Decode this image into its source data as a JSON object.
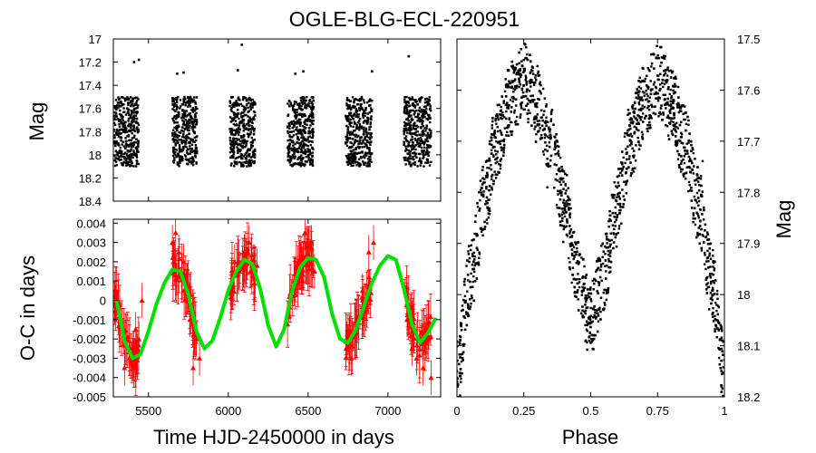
{
  "title": "OGLE-BLG-ECL-220951",
  "colors": {
    "points": "#000000",
    "oc_points": "#ff0000",
    "fit": "#00e000"
  },
  "chart_data": [
    {
      "id": "light_curve",
      "type": "scatter",
      "ylabel": "Mag",
      "ylim": [
        18.4,
        17.0
      ],
      "y_inverted": true,
      "xlim": [
        5280,
        7330
      ],
      "yticks": [
        17,
        17.2,
        17.4,
        17.6,
        17.8,
        18,
        18.2,
        18.4
      ],
      "ytick_labels": [
        "17",
        "17.2",
        "17.4",
        "17.6",
        "17.8",
        "18",
        "18.2",
        "18.4"
      ],
      "seasons": [
        {
          "start": 5285,
          "end": 5440,
          "mag_range": [
            17.5,
            18.1
          ]
        },
        {
          "start": 5650,
          "end": 5805,
          "mag_range": [
            17.5,
            18.1
          ]
        },
        {
          "start": 6010,
          "end": 6170,
          "mag_range": [
            17.5,
            18.1
          ]
        },
        {
          "start": 6370,
          "end": 6535,
          "mag_range": [
            17.5,
            18.1
          ]
        },
        {
          "start": 6735,
          "end": 6900,
          "mag_range": [
            17.5,
            18.1
          ]
        },
        {
          "start": 7100,
          "end": 7270,
          "mag_range": [
            17.5,
            18.1
          ]
        }
      ],
      "outliers": [
        {
          "x": 5410,
          "y": 17.2
        },
        {
          "x": 5440,
          "y": 17.18
        },
        {
          "x": 5680,
          "y": 17.3
        },
        {
          "x": 5720,
          "y": 17.29
        },
        {
          "x": 6060,
          "y": 17.27
        },
        {
          "x": 6085,
          "y": 17.05
        },
        {
          "x": 6420,
          "y": 17.3
        },
        {
          "x": 6470,
          "y": 17.28
        },
        {
          "x": 6900,
          "y": 17.28
        },
        {
          "x": 7130,
          "y": 17.15
        }
      ]
    },
    {
      "id": "oc_diagram",
      "type": "scatter",
      "xlabel": "Time HJD-2450000 in days",
      "ylabel": "O-C in days",
      "xlim": [
        5280,
        7330
      ],
      "ylim": [
        -0.005,
        0.0042
      ],
      "xticks": [
        5500,
        6000,
        6500,
        7000
      ],
      "xtick_labels": [
        "5500",
        "6000",
        "6500",
        "7000"
      ],
      "yticks": [
        0.004,
        0.003,
        0.002,
        0.001,
        0,
        -0.001,
        -0.002,
        -0.003,
        -0.004,
        -0.005
      ],
      "ytick_labels": [
        "0.004",
        "0.003",
        "0.002",
        "0.001",
        "0",
        "-0.001",
        "-0.002",
        "-0.003",
        "-0.004",
        "-0.005"
      ],
      "fit_curve": {
        "type": "line",
        "x": [
          5300,
          5350,
          5400,
          5450,
          5500,
          5550,
          5600,
          5650,
          5700,
          5750,
          5800,
          5850,
          5900,
          5950,
          6000,
          6050,
          6100,
          6150,
          6200,
          6250,
          6300,
          6350,
          6400,
          6450,
          6500,
          6550,
          6600,
          6650,
          6700,
          6750,
          6800,
          6850,
          6900,
          6950,
          7000,
          7050,
          7100,
          7150,
          7200,
          7250,
          7300
        ],
        "y": [
          0.0,
          -0.0021,
          -0.003,
          -0.0028,
          -0.0016,
          -0.0002,
          0.0009,
          0.0016,
          0.0015,
          0.0003,
          -0.0016,
          -0.0025,
          -0.0021,
          -0.0009,
          0.0005,
          0.0015,
          0.0021,
          0.0019,
          0.0006,
          -0.0013,
          -0.0024,
          -0.0015,
          0.0005,
          0.0017,
          0.0022,
          0.0021,
          0.0012,
          -0.0007,
          -0.002,
          -0.0022,
          -0.0015,
          -0.0003,
          0.0009,
          0.0018,
          0.0023,
          0.0021,
          0.0006,
          -0.0012,
          -0.0022,
          -0.0017,
          -0.0009
        ]
      },
      "observations": [
        {
          "x": 5380,
          "y": -0.003
        },
        {
          "x": 5400,
          "y": -0.0025
        },
        {
          "x": 5420,
          "y": -0.0015
        },
        {
          "x": 5440,
          "y": -0.002
        },
        {
          "x": 5460,
          "y": 0.0
        },
        {
          "x": 5350,
          "y": -0.0035
        },
        {
          "x": 5650,
          "y": 0.003
        },
        {
          "x": 5670,
          "y": 0.0035
        },
        {
          "x": 5690,
          "y": 0.0025
        },
        {
          "x": 5720,
          "y": 0.002
        },
        {
          "x": 5740,
          "y": 0.001
        },
        {
          "x": 5760,
          "y": -0.001
        },
        {
          "x": 5780,
          "y": -0.0035
        },
        {
          "x": 5800,
          "y": -0.002
        },
        {
          "x": 5820,
          "y": -0.003
        },
        {
          "x": 6040,
          "y": 0.002
        },
        {
          "x": 6070,
          "y": 0.0015
        },
        {
          "x": 6100,
          "y": 0.0025
        },
        {
          "x": 6130,
          "y": 0.003
        },
        {
          "x": 6160,
          "y": 0.002
        },
        {
          "x": 6180,
          "y": 0.0018
        },
        {
          "x": 6420,
          "y": 0.001
        },
        {
          "x": 6450,
          "y": 0.002
        },
        {
          "x": 6480,
          "y": 0.0035
        },
        {
          "x": 6500,
          "y": 0.0028
        },
        {
          "x": 6520,
          "y": 0.003
        },
        {
          "x": 6540,
          "y": 0.0015
        },
        {
          "x": 6740,
          "y": -0.002
        },
        {
          "x": 6770,
          "y": -0.003
        },
        {
          "x": 6800,
          "y": -0.0012
        },
        {
          "x": 6840,
          "y": 0.0005
        },
        {
          "x": 6880,
          "y": 0.0025
        },
        {
          "x": 6910,
          "y": 0.003
        },
        {
          "x": 7120,
          "y": -0.001
        },
        {
          "x": 7150,
          "y": -0.0025
        },
        {
          "x": 7180,
          "y": -0.003
        },
        {
          "x": 7220,
          "y": -0.0035
        },
        {
          "x": 7250,
          "y": -0.002
        },
        {
          "x": 7270,
          "y": -0.004
        }
      ]
    },
    {
      "id": "phased_light_curve",
      "type": "scatter",
      "xlabel": "Phase",
      "ylabel": "Mag",
      "xlim": [
        0,
        1
      ],
      "ylim": [
        18.2,
        17.5
      ],
      "y_inverted": true,
      "xticks": [
        0,
        0.25,
        0.5,
        0.75,
        1
      ],
      "xtick_labels": [
        "0",
        "0.25",
        "0.5",
        "0.75",
        "1"
      ],
      "yticks": [
        17.5,
        17.6,
        17.7,
        17.8,
        17.9,
        18,
        18.1,
        18.2
      ],
      "ytick_labels": [
        "17.5",
        "17.6",
        "17.7",
        "17.8",
        "17.9",
        "18",
        "18.1",
        "18.2"
      ],
      "model": {
        "phase": [
          0.0,
          0.05,
          0.1,
          0.15,
          0.2,
          0.25,
          0.3,
          0.35,
          0.4,
          0.45,
          0.5,
          0.55,
          0.6,
          0.65,
          0.7,
          0.75,
          0.8,
          0.85,
          0.9,
          0.95,
          1.0
        ],
        "mag": [
          18.15,
          17.97,
          17.82,
          17.7,
          17.62,
          17.58,
          17.62,
          17.7,
          17.83,
          17.96,
          18.05,
          17.96,
          17.83,
          17.7,
          17.62,
          17.58,
          17.62,
          17.7,
          17.82,
          17.97,
          18.15
        ]
      },
      "scatter_width_mag": 0.09
    }
  ]
}
